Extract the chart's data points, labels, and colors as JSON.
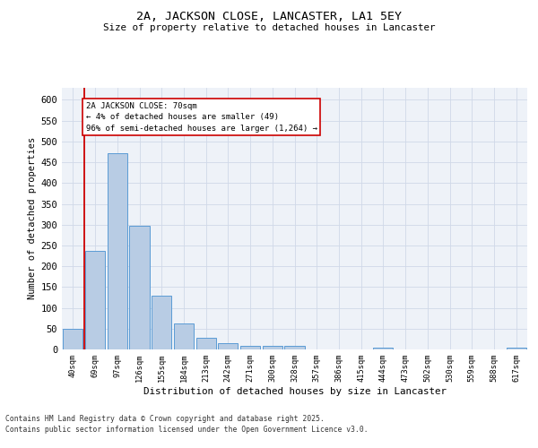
{
  "title1": "2A, JACKSON CLOSE, LANCASTER, LA1 5EY",
  "title2": "Size of property relative to detached houses in Lancaster",
  "xlabel": "Distribution of detached houses by size in Lancaster",
  "ylabel": "Number of detached properties",
  "categories": [
    "40sqm",
    "69sqm",
    "97sqm",
    "126sqm",
    "155sqm",
    "184sqm",
    "213sqm",
    "242sqm",
    "271sqm",
    "300sqm",
    "328sqm",
    "357sqm",
    "386sqm",
    "415sqm",
    "444sqm",
    "473sqm",
    "502sqm",
    "530sqm",
    "559sqm",
    "588sqm",
    "617sqm"
  ],
  "values": [
    49,
    238,
    471,
    298,
    130,
    63,
    28,
    15,
    8,
    9,
    8,
    0,
    0,
    0,
    4,
    0,
    0,
    0,
    0,
    0,
    4
  ],
  "bar_color": "#b8cce4",
  "bar_edge_color": "#5b9bd5",
  "grid_color": "#d0d8e8",
  "bg_color": "#eef2f8",
  "vline_color": "#cc0000",
  "annotation_text": "2A JACKSON CLOSE: 70sqm\n← 4% of detached houses are smaller (49)\n96% of semi-detached houses are larger (1,264) →",
  "annotation_box_color": "#cc0000",
  "footer1": "Contains HM Land Registry data © Crown copyright and database right 2025.",
  "footer2": "Contains public sector information licensed under the Open Government Licence v3.0.",
  "ylim": [
    0,
    630
  ],
  "yticks": [
    0,
    50,
    100,
    150,
    200,
    250,
    300,
    350,
    400,
    450,
    500,
    550,
    600
  ]
}
